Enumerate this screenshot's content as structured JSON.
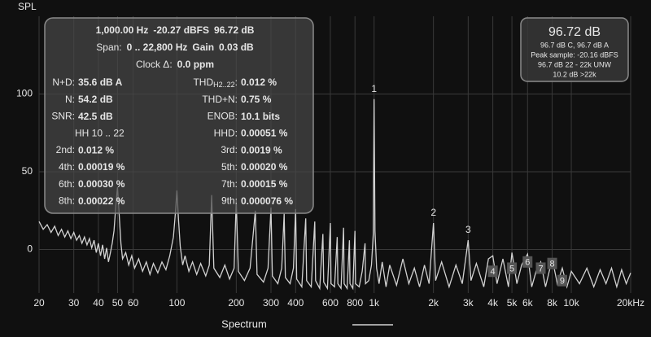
{
  "chart_data": {
    "type": "line",
    "y_label": "SPL",
    "log_x": true,
    "grid": true,
    "xlim": [
      20,
      20000
    ],
    "ylim": [
      -28,
      150
    ],
    "yticks": [
      0,
      50,
      100
    ],
    "xticks": [
      20,
      30,
      40,
      50,
      60,
      100,
      200,
      300,
      400,
      600,
      800,
      {
        "value": 1000,
        "label": "1k"
      },
      {
        "value": 2000,
        "label": "2k"
      },
      {
        "value": 3000,
        "label": "3k"
      },
      {
        "value": 4000,
        "label": "4k"
      },
      {
        "value": 5000,
        "label": "5k"
      },
      {
        "value": 6000,
        "label": "6k"
      },
      {
        "value": 8000,
        "label": "8k"
      },
      {
        "value": 10000,
        "label": "10k"
      },
      {
        "value": 20000,
        "label": "20kHz"
      }
    ],
    "series": [
      {
        "name": "Spectrum",
        "color": "#d2d2d2",
        "x": [
          20,
          21,
          22,
          23,
          24,
          25,
          26,
          27,
          28,
          29,
          30,
          31,
          32,
          33,
          34,
          35,
          36,
          37,
          38,
          39,
          40,
          41,
          42,
          43,
          44,
          45,
          46,
          47,
          48,
          49,
          50,
          51,
          52,
          53,
          55,
          57,
          59,
          61,
          64,
          67,
          70,
          73,
          76,
          80,
          84,
          88,
          92,
          96,
          98,
          100,
          102,
          104,
          107,
          110,
          115,
          120,
          126,
          132,
          140,
          146,
          150,
          154,
          165,
          175,
          185,
          195,
          200,
          205,
          220,
          235,
          250,
          255,
          275,
          290,
          300,
          305,
          325,
          340,
          350,
          355,
          375,
          390,
          400,
          405,
          430,
          450,
          455,
          480,
          500,
          505,
          530,
          550,
          555,
          580,
          600,
          605,
          630,
          650,
          655,
          680,
          700,
          705,
          730,
          750,
          755,
          780,
          800,
          805,
          840,
          870,
          900,
          905,
          940,
          970,
          990,
          1000,
          1010,
          1030,
          1060,
          1100,
          1150,
          1200,
          1300,
          1400,
          1500,
          1600,
          1700,
          1800,
          1900,
          2000,
          2050,
          2200,
          2400,
          2600,
          2800,
          3000,
          3100,
          3300,
          3600,
          3800,
          4000,
          4200,
          4500,
          4800,
          5000,
          5300,
          5600,
          6000,
          6300,
          6700,
          7000,
          7400,
          8000,
          8500,
          9000,
          9500,
          10000,
          11000,
          12000,
          13000,
          14000,
          15000,
          16000,
          17000,
          18000,
          19000,
          20000
        ],
        "values": [
          18,
          13,
          16,
          11,
          15,
          9,
          13,
          8,
          12,
          7,
          11,
          6,
          9,
          4,
          8,
          3,
          7,
          1,
          6,
          -2,
          4,
          -4,
          3,
          -6,
          1,
          -8,
          -2,
          4,
          12,
          28,
          40,
          22,
          4,
          -6,
          -2,
          -10,
          -4,
          -12,
          -6,
          -14,
          -8,
          -16,
          -9,
          -15,
          -8,
          -13,
          -4,
          8,
          22,
          38,
          18,
          2,
          -10,
          -4,
          -14,
          -8,
          -16,
          -9,
          -17,
          -10,
          35,
          -12,
          -18,
          -10,
          -19,
          -12,
          32,
          -14,
          -20,
          -12,
          25,
          -16,
          -21,
          -12,
          27,
          -17,
          -22,
          -12,
          23,
          -18,
          -22,
          -12,
          26,
          -19,
          -24,
          20,
          -20,
          -24,
          18,
          -20,
          -25,
          10,
          -21,
          -25,
          17,
          -22,
          -24,
          8,
          -22,
          -25,
          14,
          -22,
          -25,
          6,
          -22,
          -25,
          12,
          -22,
          -24,
          -14,
          4,
          -22,
          -20,
          -10,
          10,
          96.72,
          12,
          -12,
          -22,
          -8,
          -24,
          -10,
          -23,
          -6,
          -22,
          -12,
          -24,
          -10,
          -22,
          17,
          -20,
          -8,
          -24,
          -10,
          -22,
          6,
          -20,
          -9,
          -24,
          -6,
          -4,
          -22,
          -6,
          -24,
          -2,
          -22,
          -10,
          -3,
          -24,
          -12,
          -8,
          -24,
          -6,
          -22,
          -12,
          -24,
          -14,
          -22,
          -12,
          -24,
          -13,
          -22,
          -12,
          -24,
          -13,
          -22,
          -15
        ]
      }
    ],
    "harmonic_markers": [
      {
        "label": "1",
        "x": 1000,
        "y": 96.72,
        "boxed": false
      },
      {
        "label": "2",
        "x": 2000,
        "y": 17,
        "boxed": false
      },
      {
        "label": "3",
        "x": 3000,
        "y": 6,
        "boxed": false
      },
      {
        "label": "4",
        "x": 4000,
        "y": -14,
        "boxed": true
      },
      {
        "label": "5",
        "x": 5000,
        "y": -12,
        "boxed": true
      },
      {
        "label": "6",
        "x": 6000,
        "y": -8,
        "boxed": true
      },
      {
        "label": "7",
        "x": 7000,
        "y": -12,
        "boxed": true
      },
      {
        "label": "8",
        "x": 8000,
        "y": -9,
        "boxed": true
      },
      {
        "label": "9",
        "x": 9000,
        "y": -20,
        "boxed": true
      }
    ],
    "info_panel": {
      "header_lines": [
        [
          {
            "text": "1,000.00 Hz",
            "bold": true
          },
          {
            "text": "-20.27 dBFS",
            "bold": true
          },
          {
            "text": "96.72 dB",
            "bold": true
          }
        ],
        [
          {
            "text": "Span:",
            "bold": false
          },
          {
            "text": "0 .. 22,800 Hz",
            "bold": true
          },
          {
            "text": "Gain",
            "bold": true
          },
          {
            "text": "0.03 dB",
            "bold": true
          }
        ],
        [
          {
            "text": "Clock Δ:",
            "bold": false
          },
          {
            "text": "0.0 ppm",
            "bold": true
          }
        ]
      ],
      "rows": [
        [
          {
            "label": "N+D:",
            "value": "35.6 dB A"
          },
          {
            "label": "THD",
            "sub": "H2..22",
            "colon": ":",
            "value": "0.012 %"
          }
        ],
        [
          {
            "label": "N:",
            "value": "54.2 dB"
          },
          {
            "label": "THD+N:",
            "value": "0.75 %"
          }
        ],
        [
          {
            "label": "SNR:",
            "value": "42.5 dB"
          },
          {
            "label": "ENOB:",
            "value": "10.1 bits"
          }
        ],
        [
          {
            "label": "HH 10 .. 22"
          },
          {
            "label": "HHD:",
            "value": "0.00051 %"
          }
        ],
        [
          {
            "label": "2nd:",
            "value": "0.012 %"
          },
          {
            "label": "3rd:",
            "value": "0.0019 %"
          }
        ],
        [
          {
            "label": "4th:",
            "value": "0.00019 %"
          },
          {
            "label": "5th:",
            "value": "0.00020 %"
          }
        ],
        [
          {
            "label": "6th:",
            "value": "0.00030 %"
          },
          {
            "label": "7th:",
            "value": "0.00015 %"
          }
        ],
        [
          {
            "label": "8th:",
            "value": "0.00022 %"
          },
          {
            "label": "9th:",
            "value": "0.000076 %"
          }
        ]
      ]
    },
    "level_panel": {
      "main": "96.72 dB",
      "lines": [
        "96.7 dB C, 96.7 dB A",
        "Peak sample: -20.16 dBFS",
        "96.7 dB 22 - 22k UNW",
        "10.2 dB >22k"
      ]
    }
  }
}
